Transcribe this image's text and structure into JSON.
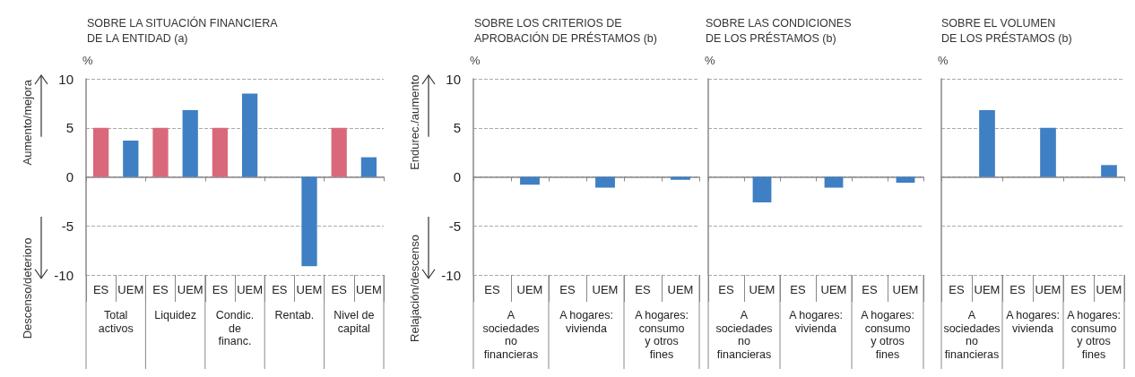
{
  "chart_data": [
    {
      "type": "bar",
      "title": "SOBRE LA SITUACIÓN FINANCIERA\nDE LA ENTIDAD (a)",
      "ylabel": "%",
      "categories": [
        "ES",
        "UEM",
        "ES",
        "UEM",
        "ES",
        "UEM",
        "ES",
        "UEM",
        "ES",
        "UEM"
      ],
      "values": [
        5,
        3.7,
        5,
        6.8,
        5,
        8.5,
        0,
        -9.1,
        5,
        2.0
      ],
      "colors": [
        "#d9697a",
        "#3f7fc4",
        "#d9697a",
        "#3f7fc4",
        "#d9697a",
        "#3f7fc4",
        "#d9697a",
        "#3f7fc4",
        "#d9697a",
        "#3f7fc4"
      ],
      "ylim": [
        -10,
        10
      ],
      "yticks": [
        -10,
        -5,
        0,
        5,
        10
      ],
      "grid": "y",
      "annotations": [
        "Aumento/mejora",
        "Descenso/deterioro",
        "Total\nactivos",
        "Liquidez",
        "Condic.\nde\nfinanc.",
        "Rentab.",
        "Nivel de\ncapital"
      ]
    },
    {
      "type": "bar",
      "title": "SOBRE LOS CRITERIOS DE\nAPROBACIÓN DE PRÉSTAMOS (b)",
      "ylabel": "%",
      "categories": [
        "ES",
        "UEM",
        "ES",
        "UEM",
        "ES",
        "UEM"
      ],
      "values": [
        0,
        -0.8,
        0,
        -1.1,
        0,
        -0.3
      ],
      "colors": [
        "#d9697a",
        "#3f7fc4",
        "#d9697a",
        "#3f7fc4",
        "#d9697a",
        "#3f7fc4"
      ],
      "ylim": [
        -10,
        10
      ],
      "yticks": [
        -10,
        -5,
        0,
        5,
        10
      ],
      "grid": "y",
      "annotations": [
        "Endurec./aumento",
        "Relajación/descenso",
        "A\nsociedades\nno\nfinancieras",
        "A hogares:\nvivienda",
        "A hogares:\nconsumo\ny otros\nfines"
      ]
    },
    {
      "type": "bar",
      "title": "SOBRE LAS CONDICIONES\nDE LOS PRÉSTAMOS (b)",
      "ylabel": "%",
      "categories": [
        "ES",
        "UEM",
        "ES",
        "UEM",
        "ES",
        "UEM"
      ],
      "values": [
        0,
        -2.6,
        0,
        -1.1,
        0,
        -0.6
      ],
      "colors": [
        "#d9697a",
        "#3f7fc4",
        "#d9697a",
        "#3f7fc4",
        "#d9697a",
        "#3f7fc4"
      ],
      "ylim": [
        -10,
        10
      ],
      "yticks": [
        -10,
        -5,
        0,
        5,
        10
      ],
      "grid": "y",
      "tick_labels": "x",
      "annotations": [
        "A\nsociedades\nno\nfinancieras",
        "A hogares:\nvivienda",
        "A hogares:\nconsumo\ny otros\nfines"
      ]
    },
    {
      "type": "bar",
      "title": "SOBRE EL VOLUMEN\nDE LOS PRÉSTAMOS (b)",
      "ylabel": "%",
      "categories": [
        "ES",
        "UEM",
        "ES",
        "UEM",
        "ES",
        "UEM"
      ],
      "values": [
        0,
        6.8,
        0,
        5.0,
        0,
        1.2
      ],
      "colors": [
        "#d9697a",
        "#3f7fc4",
        "#d9697a",
        "#3f7fc4",
        "#d9697a",
        "#3f7fc4"
      ],
      "ylim": [
        -10,
        10
      ],
      "yticks": [
        -10,
        -5,
        0,
        5,
        10
      ],
      "grid": "y",
      "tick_labels": "x",
      "annotations": [
        "A\nsociedades\nno\nfinancieras",
        "A hogares:\nvivienda",
        "A hogares:\nconsumo\ny otros\nfines"
      ]
    }
  ]
}
